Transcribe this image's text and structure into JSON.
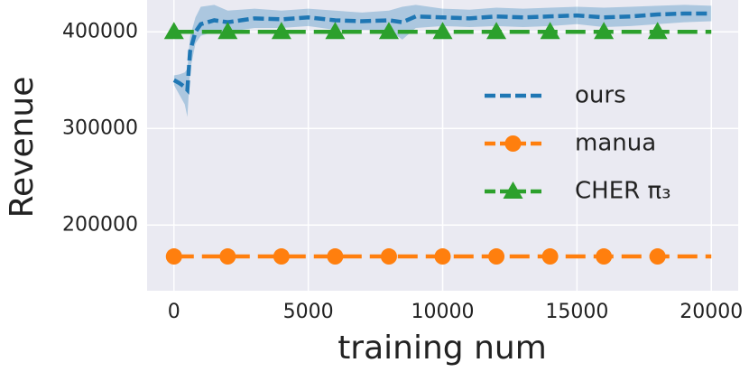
{
  "chart_data": {
    "type": "line",
    "xlabel": "training num",
    "ylabel": "Revenue",
    "xlim": [
      -1000,
      21000
    ],
    "ylim": [
      132000,
      433000
    ],
    "xticks": [
      0,
      5000,
      10000,
      15000,
      20000
    ],
    "yticks": [
      200000,
      300000,
      400000
    ],
    "grid": true,
    "legend": "center right",
    "series": [
      {
        "name": "ours",
        "color": "#1f77b4",
        "linestyle": "dashed",
        "marker": null,
        "x": [
          0,
          200,
          400,
          500,
          600,
          800,
          1000,
          1500,
          2000,
          3000,
          4000,
          5000,
          6000,
          7000,
          8000,
          8500,
          9000,
          10000,
          11000,
          12000,
          13000,
          14000,
          15000,
          16000,
          17000,
          18000,
          19000,
          20000
        ],
        "values": [
          350000,
          347000,
          343000,
          340000,
          380000,
          400000,
          408000,
          412000,
          410000,
          414000,
          413000,
          415000,
          412000,
          411000,
          412000,
          410000,
          416000,
          415000,
          414000,
          416000,
          415000,
          416000,
          417000,
          415000,
          416000,
          418000,
          419000,
          419000
        ],
        "lower": [
          345000,
          335000,
          325000,
          312000,
          360000,
          388000,
          396000,
          400000,
          400000,
          404000,
          404000,
          406000,
          402000,
          402000,
          402000,
          392000,
          404000,
          406000,
          405000,
          406000,
          405000,
          406000,
          408000,
          405000,
          406000,
          408000,
          410000,
          411000
        ],
        "upper": [
          355000,
          356000,
          358000,
          362000,
          395000,
          415000,
          426000,
          428000,
          422000,
          424000,
          422000,
          424000,
          422000,
          420000,
          422000,
          426000,
          428000,
          424000,
          423000,
          425000,
          424000,
          425000,
          426000,
          425000,
          426000,
          427000,
          428000,
          427000
        ]
      },
      {
        "name": "manua",
        "color": "#ff7f0e",
        "linestyle": "dashed",
        "marker": "circle",
        "last_marker": false,
        "x": [
          0,
          2000,
          4000,
          6000,
          8000,
          10000,
          12000,
          14000,
          16000,
          18000,
          20000
        ],
        "values": [
          167500,
          167500,
          167500,
          167500,
          167500,
          167500,
          167500,
          167500,
          167500,
          167500,
          167500
        ]
      },
      {
        "name": "CHER π₃",
        "color": "#2ca02c",
        "linestyle": "dashed",
        "marker": "triangle",
        "last_marker": false,
        "x": [
          0,
          2000,
          4000,
          6000,
          8000,
          10000,
          12000,
          14000,
          16000,
          18000,
          20000
        ],
        "values": [
          400000,
          400000,
          400000,
          400000,
          400000,
          400000,
          400000,
          400000,
          400000,
          400000,
          400000
        ]
      }
    ]
  }
}
